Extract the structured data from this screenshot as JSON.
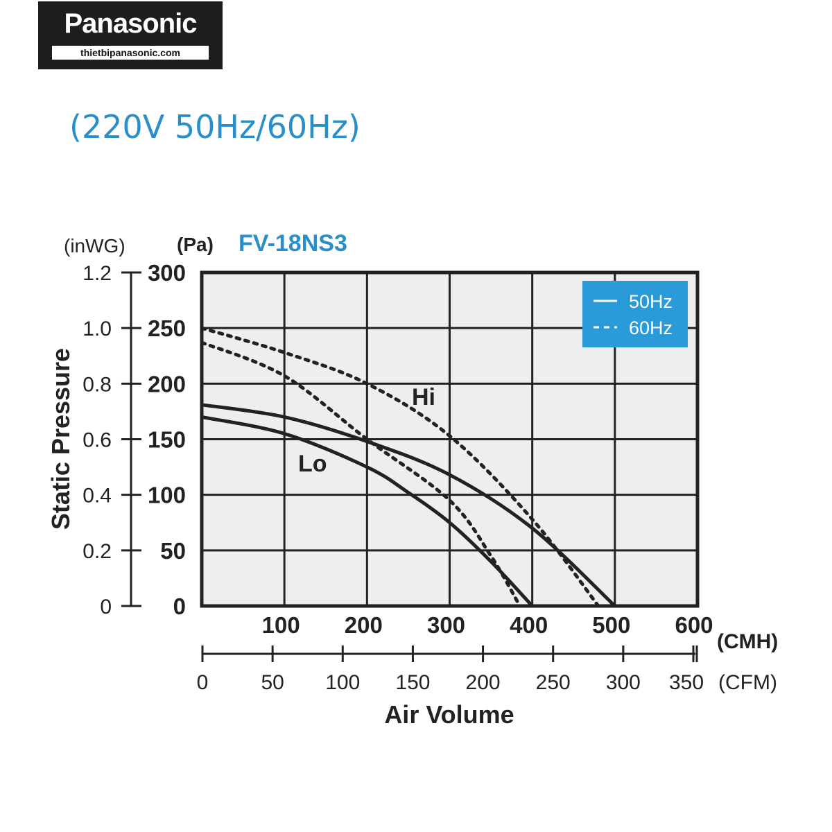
{
  "brand": {
    "logo_text": "Panasonic",
    "website": "thietbipanasonic.com"
  },
  "header": {
    "subtitle": "(220V 50Hz/60Hz)"
  },
  "colors": {
    "accent": "#2a8fc8",
    "legend_bg": "#2a9bd8",
    "plot_bg": "#eeeeee",
    "curve": "#222222"
  },
  "chart_data": {
    "type": "line",
    "title": "FV-18NS3",
    "ylabel": "Static Pressure",
    "xlabel": "Air Volume",
    "y_units": [
      "(inWG)",
      "(Pa)"
    ],
    "x_units": [
      "(CMH)",
      "(CFM)"
    ],
    "xlim": [
      0,
      600
    ],
    "ylim": [
      0,
      300
    ],
    "x_ticks_cmh": [
      "100",
      "200",
      "300",
      "400",
      "500",
      "600"
    ],
    "x_ticks_cfm": [
      "0",
      "50",
      "100",
      "150",
      "200",
      "250",
      "300",
      "350"
    ],
    "y_ticks_pa": [
      "0",
      "50",
      "100",
      "150",
      "200",
      "250",
      "300"
    ],
    "y_ticks_inwg": [
      "0",
      "0.2",
      "0.4",
      "0.6",
      "0.8",
      "1.0",
      "1.2"
    ],
    "grid": true,
    "legend": {
      "placement": "top-right",
      "entries": [
        {
          "label": "50Hz",
          "style": "solid"
        },
        {
          "label": "60Hz",
          "style": "dashed"
        }
      ]
    },
    "annotations": [
      "Hi",
      "Lo"
    ],
    "series": [
      {
        "speed": "Hi",
        "frequency": "50Hz",
        "style": "solid",
        "x": [
          0,
          100,
          200,
          300,
          400,
          500
        ],
        "y": [
          181,
          170,
          148,
          118,
          70,
          0
        ]
      },
      {
        "speed": "Lo",
        "frequency": "50Hz",
        "style": "solid",
        "x": [
          0,
          100,
          200,
          250,
          300,
          350,
          400
        ],
        "y": [
          170,
          155,
          125,
          102,
          75,
          40,
          0
        ]
      },
      {
        "speed": "Hi",
        "frequency": "60Hz",
        "style": "dashed",
        "x": [
          0,
          100,
          200,
          300,
          400,
          480
        ],
        "y": [
          250,
          228,
          200,
          153,
          78,
          0
        ]
      },
      {
        "speed": "Lo",
        "frequency": "60Hz",
        "style": "dashed",
        "x": [
          0,
          100,
          200,
          300,
          350,
          385
        ],
        "y": [
          237,
          207,
          150,
          95,
          45,
          0
        ]
      }
    ]
  }
}
